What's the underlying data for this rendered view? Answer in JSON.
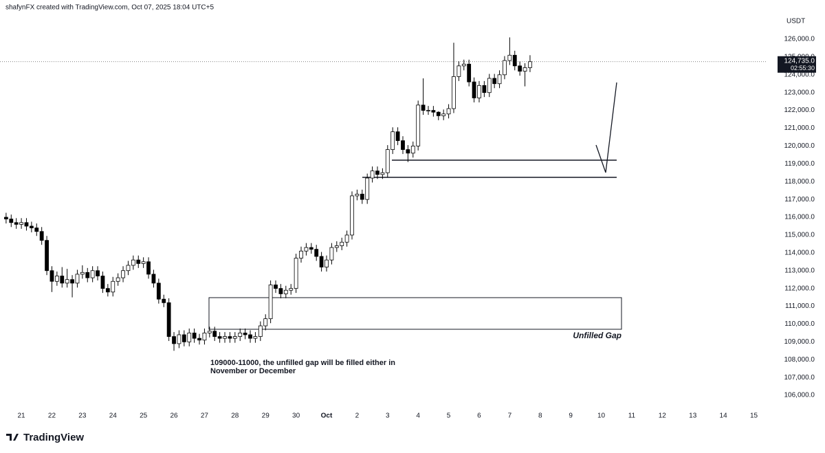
{
  "header": "shafynFX created with TradingView.com, Oct 07, 2025 18:04 UTC+5",
  "brand": "TradingView",
  "chart_data": {
    "type": "candlestick",
    "currency": "USDT",
    "price_label": "124,735.0",
    "countdown": "02:55:30",
    "annotation": "109000-11000, the unfilled gap will be filled either in November or December",
    "gap_label": "Unfilled Gap",
    "x": [
      -12,
      -8,
      -4,
      0,
      4,
      8,
      12,
      16,
      20,
      24,
      28,
      32,
      36,
      40,
      44,
      48,
      52,
      56,
      60,
      64,
      68,
      72,
      76,
      80,
      84,
      88,
      92,
      96,
      100,
      104,
      108,
      112,
      116,
      120,
      124,
      128,
      132,
      136,
      140,
      144,
      148,
      152,
      156,
      160,
      164,
      168,
      172,
      176,
      180,
      184,
      188,
      192,
      196,
      200,
      204,
      208,
      212,
      216,
      220,
      224,
      228,
      232,
      236,
      240,
      244,
      248,
      252,
      256,
      260,
      264,
      268,
      272,
      276,
      280,
      284,
      288,
      292,
      296,
      300,
      304,
      308,
      312,
      316,
      320,
      324,
      328,
      332,
      336,
      340,
      344,
      348,
      352,
      356,
      360,
      364,
      368,
      372,
      376,
      380,
      384,
      388,
      392,
      396,
      400
    ],
    "open": [
      116000,
      115900,
      115700,
      115600,
      115700,
      115500,
      115400,
      115200,
      114700,
      113000,
      112400,
      112700,
      112300,
      112500,
      112300,
      112800,
      112900,
      112600,
      113000,
      112700,
      112000,
      111800,
      112400,
      112600,
      113000,
      113300,
      113600,
      113400,
      113500,
      112800,
      112300,
      111400,
      111200,
      109300,
      108900,
      109400,
      109000,
      109500,
      109200,
      109100,
      109500,
      109600,
      109300,
      109200,
      109300,
      109200,
      109300,
      109500,
      109400,
      109200,
      109300,
      109900,
      110300,
      112200,
      112000,
      111700,
      111900,
      112000,
      113700,
      114100,
      114300,
      114200,
      113800,
      113200,
      113600,
      114300,
      114400,
      114600,
      115000,
      117200,
      117300,
      117000,
      118200,
      118600,
      118400,
      118500,
      119800,
      120800,
      120300,
      119800,
      119600,
      120000,
      122300,
      122000,
      122000,
      121900,
      121700,
      121800,
      122100,
      123900,
      124500,
      124600,
      123600,
      122700,
      123400,
      123000,
      123800,
      123500,
      124000,
      124800,
      125100,
      124500,
      124200,
      124400
    ],
    "high": [
      116250,
      116150,
      115950,
      115950,
      115950,
      115750,
      115650,
      115450,
      114950,
      113250,
      112950,
      113200,
      113100,
      112750,
      113050,
      113300,
      113150,
      113250,
      113250,
      112950,
      112250,
      112650,
      112850,
      113250,
      113550,
      113850,
      113850,
      113750,
      113750,
      113050,
      112550,
      111650,
      111450,
      109550,
      109650,
      109650,
      109750,
      109750,
      109450,
      109750,
      109850,
      109850,
      109550,
      109550,
      109550,
      109550,
      109750,
      109750,
      109650,
      109550,
      110150,
      110550,
      112450,
      112450,
      112250,
      112150,
      112250,
      113950,
      114350,
      114550,
      114550,
      114450,
      114050,
      113850,
      114550,
      114650,
      114850,
      115250,
      117450,
      117550,
      117550,
      118450,
      118850,
      118850,
      118750,
      120050,
      121050,
      121050,
      120550,
      120050,
      120250,
      122550,
      123800,
      122250,
      122250,
      121950,
      122050,
      122350,
      125800,
      124750,
      124850,
      124850,
      123850,
      123650,
      123650,
      124050,
      124050,
      124250,
      125050,
      126100,
      125350,
      124750,
      124650,
      125100
    ],
    "low": [
      115650,
      115450,
      115350,
      115350,
      115250,
      115150,
      114950,
      114450,
      112750,
      111800,
      112150,
      112050,
      112050,
      111500,
      112050,
      112550,
      112350,
      112350,
      112450,
      111750,
      111550,
      111550,
      112150,
      112350,
      112750,
      113050,
      113150,
      113150,
      112550,
      112050,
      111150,
      110950,
      109050,
      108500,
      108650,
      108750,
      108750,
      108950,
      108850,
      108850,
      109250,
      109050,
      108950,
      108950,
      108950,
      108950,
      109050,
      109150,
      108950,
      108950,
      109050,
      109650,
      110050,
      111750,
      111450,
      111450,
      111650,
      111750,
      113450,
      113850,
      113950,
      113550,
      112950,
      112950,
      113350,
      114050,
      114150,
      114350,
      114750,
      116950,
      116750,
      116750,
      117950,
      118150,
      118150,
      118250,
      119550,
      120050,
      119550,
      119100,
      119350,
      119750,
      121750,
      121750,
      121650,
      121450,
      121450,
      121550,
      121850,
      123650,
      124250,
      123350,
      122450,
      122450,
      122750,
      122750,
      123250,
      123250,
      123750,
      124550,
      124250,
      123950,
      123350,
      124150
    ],
    "close": [
      115900,
      115700,
      115600,
      115700,
      115500,
      115400,
      115200,
      114700,
      113000,
      112400,
      112700,
      112300,
      112500,
      112300,
      112800,
      112900,
      112600,
      113000,
      112700,
      112000,
      111800,
      112400,
      112600,
      113000,
      113300,
      113600,
      113400,
      113500,
      112800,
      112300,
      111400,
      111200,
      109300,
      108900,
      109400,
      109000,
      109500,
      109200,
      109100,
      109500,
      109600,
      109300,
      109200,
      109300,
      109200,
      109300,
      109500,
      109400,
      109200,
      109300,
      109900,
      110300,
      112200,
      112000,
      111700,
      111900,
      112000,
      113700,
      114100,
      114300,
      114200,
      113800,
      113200,
      113600,
      114300,
      114400,
      114600,
      115000,
      117200,
      117300,
      117000,
      118200,
      118600,
      118400,
      118500,
      119800,
      120800,
      120300,
      119800,
      119600,
      120000,
      122300,
      122000,
      122000,
      121900,
      121700,
      121800,
      122100,
      123900,
      124500,
      124600,
      123600,
      122700,
      123400,
      123000,
      123800,
      123500,
      124000,
      124800,
      125100,
      124500,
      124200,
      124400,
      124735
    ],
    "up_color": "#ffffff",
    "down_color": "#000000",
    "xlim": [
      -16.8,
      586
    ],
    "xticks": [
      {
        "value": 0,
        "label": "21"
      },
      {
        "value": 24,
        "label": "22"
      },
      {
        "value": 48,
        "label": "23"
      },
      {
        "value": 72,
        "label": "24"
      },
      {
        "value": 96,
        "label": "25"
      },
      {
        "value": 120,
        "label": "26"
      },
      {
        "value": 144,
        "label": "27"
      },
      {
        "value": 168,
        "label": "28"
      },
      {
        "value": 192,
        "label": "29"
      },
      {
        "value": 216,
        "label": "30"
      },
      {
        "value": 240,
        "label": "Oct"
      },
      {
        "value": 264,
        "label": "2"
      },
      {
        "value": 288,
        "label": "3"
      },
      {
        "value": 312,
        "label": "4"
      },
      {
        "value": 336,
        "label": "5"
      },
      {
        "value": 360,
        "label": "6"
      },
      {
        "value": 384,
        "label": "7"
      },
      {
        "value": 408,
        "label": "8"
      },
      {
        "value": 432,
        "label": "9"
      },
      {
        "value": 456,
        "label": "10"
      },
      {
        "value": 480,
        "label": "11"
      },
      {
        "value": 504,
        "label": "12"
      },
      {
        "value": 528,
        "label": "13"
      },
      {
        "value": 552,
        "label": "14"
      },
      {
        "value": 576,
        "label": "15"
      }
    ],
    "ylim": [
      105230,
      128200
    ],
    "yticks": [
      {
        "value": 106000,
        "label": "106,000.0"
      },
      {
        "value": 107000,
        "label": "107,000.0"
      },
      {
        "value": 108000,
        "label": "108,000.0"
      },
      {
        "value": 109000,
        "label": "109,000.0"
      },
      {
        "value": 110000,
        "label": "110,000.0"
      },
      {
        "value": 111000,
        "label": "111,000.0"
      },
      {
        "value": 112000,
        "label": "112,000.0"
      },
      {
        "value": 113000,
        "label": "113,000.0"
      },
      {
        "value": 114000,
        "label": "114,000.0"
      },
      {
        "value": 115000,
        "label": "115,000.0"
      },
      {
        "value": 116000,
        "label": "116,000.0"
      },
      {
        "value": 117000,
        "label": "117,000.0"
      },
      {
        "value": 118000,
        "label": "118,000.0"
      },
      {
        "value": 119000,
        "label": "119,000.0"
      },
      {
        "value": 120000,
        "label": "120,000.0"
      },
      {
        "value": 121000,
        "label": "121,000.0"
      },
      {
        "value": 122000,
        "label": "122,000.0"
      },
      {
        "value": 123000,
        "label": "123,000.0"
      },
      {
        "value": 124000,
        "label": "124,000.0"
      },
      {
        "value": 125000,
        "label": "125,000.0"
      },
      {
        "value": 126000,
        "label": "126,000.0"
      }
    ],
    "grid": false
  }
}
